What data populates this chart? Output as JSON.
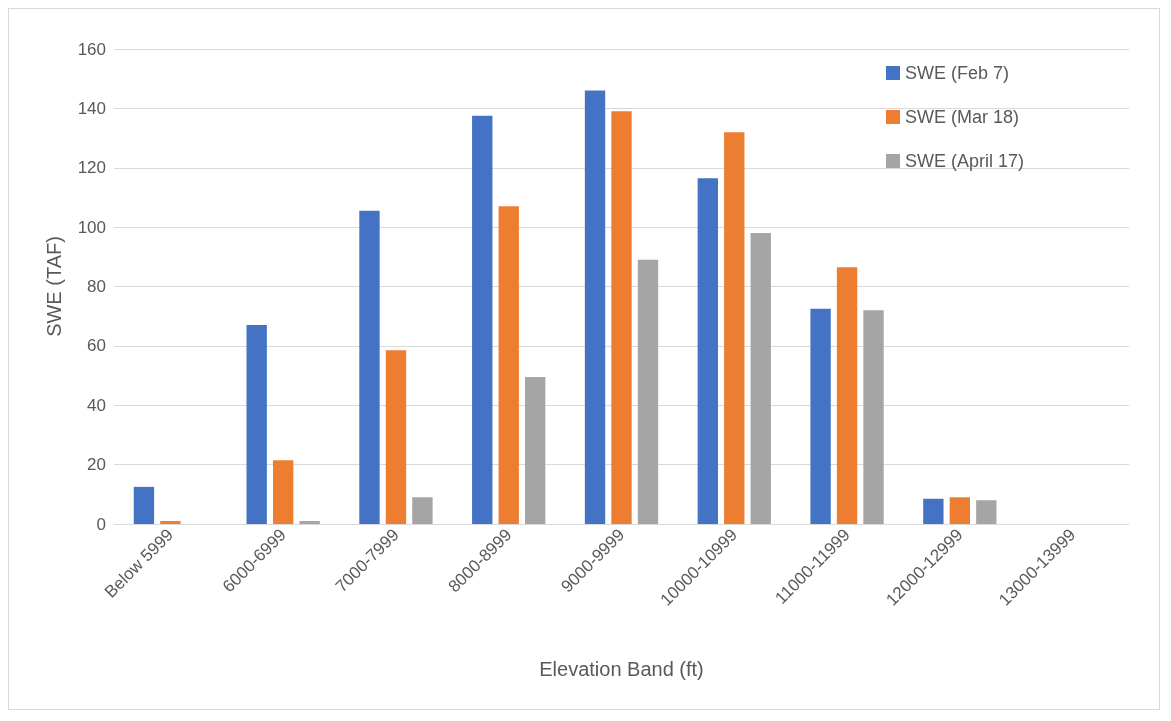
{
  "chart_data": {
    "type": "bar",
    "xlabel": "Elevation Band (ft)",
    "ylabel": "SWE (TAF)",
    "categories": [
      "Below 5999",
      "6000-6999",
      "7000-7999",
      "8000-8999",
      "9000-9999",
      "10000-10999",
      "11000-11999",
      "12000-12999",
      "13000-13999"
    ],
    "series": [
      {
        "name": "SWE (Feb 7)",
        "color": "#4472c4",
        "values": [
          12.5,
          67,
          105.5,
          137.5,
          146,
          116.5,
          72.5,
          8.5,
          0
        ]
      },
      {
        "name": "SWE (Mar 18)",
        "color": "#ed7d31",
        "values": [
          1,
          21.5,
          58.5,
          107,
          139,
          132,
          86.5,
          9,
          0
        ]
      },
      {
        "name": "SWE (April 17)",
        "color": "#a5a5a5",
        "values": [
          0,
          1,
          9,
          49.5,
          89,
          98,
          72,
          8,
          0
        ]
      }
    ],
    "ylim": [
      0,
      160
    ],
    "yticks": [
      0,
      20,
      40,
      60,
      80,
      100,
      120,
      140,
      160
    ],
    "grid": "y",
    "legend": "top right"
  }
}
